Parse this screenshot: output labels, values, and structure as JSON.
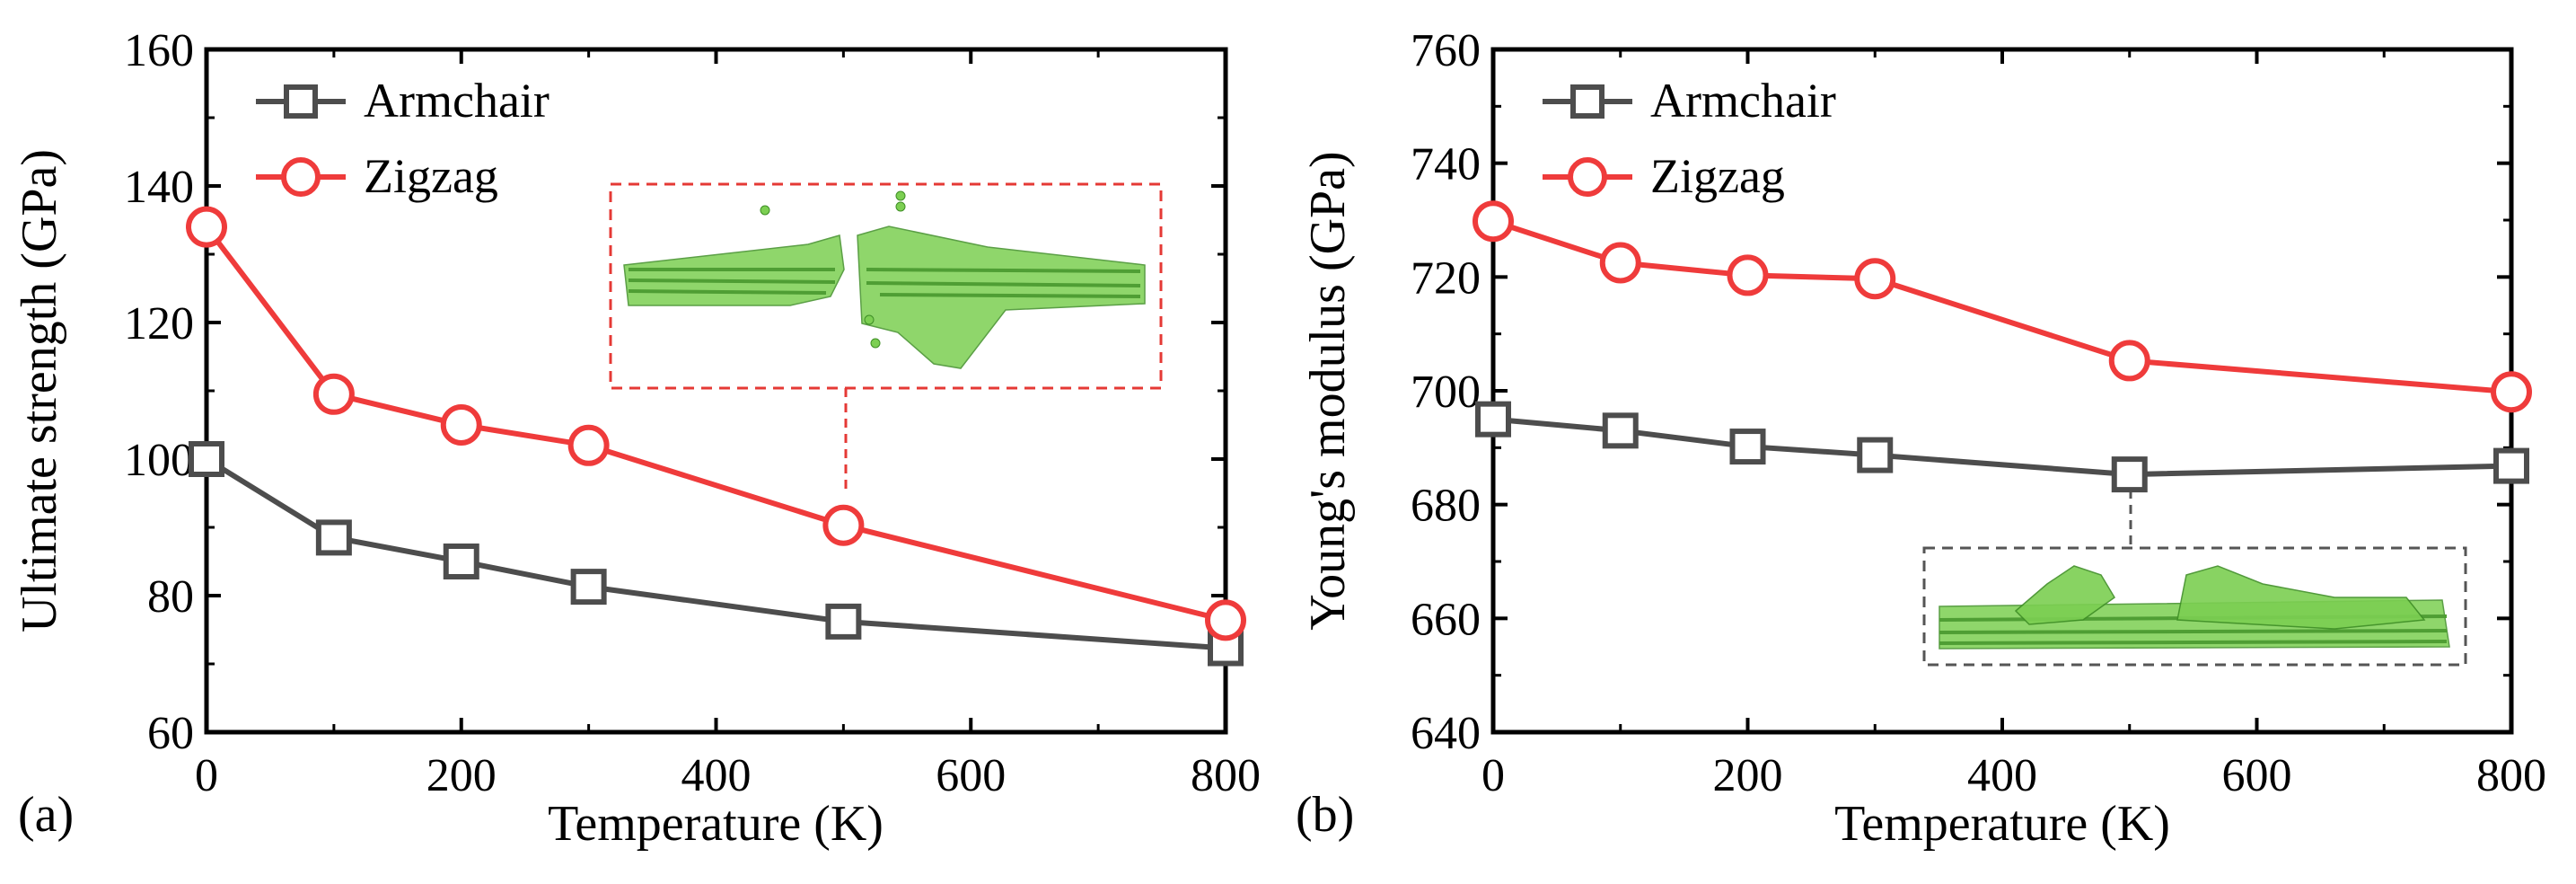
{
  "panels": [
    {
      "panel_label": "(a)",
      "legend": [
        {
          "label": "Armchair",
          "marker": "square",
          "color": "#4d4d4d"
        },
        {
          "label": "Zigzag",
          "marker": "circle",
          "color": "#ef3b3b"
        }
      ],
      "inset_marker_at": {
        "series": "Zigzag",
        "x": 500
      },
      "inset_image_description_name": "graphene-fracture-inset-a"
    },
    {
      "panel_label": "(b)",
      "legend": [
        {
          "label": "Armchair",
          "marker": "square",
          "color": "#4d4d4d"
        },
        {
          "label": "Zigzag",
          "marker": "circle",
          "color": "#ef3b3b"
        }
      ],
      "inset_marker_at": {
        "series": "Armchair",
        "x": 500
      },
      "inset_image_description_name": "graphene-fracture-inset-b"
    }
  ],
  "chart_data": [
    {
      "type": "line",
      "title": "",
      "xlabel": "Temperature (K)",
      "ylabel": "Ultimate strength (GPa)",
      "xlim": [
        0,
        800
      ],
      "ylim": [
        60,
        160
      ],
      "xticks": [
        0,
        200,
        400,
        600,
        800
      ],
      "yticks": [
        60,
        80,
        100,
        120,
        140,
        160
      ],
      "grid": false,
      "legend_position": "top-left",
      "x": [
        0,
        100,
        200,
        300,
        500,
        800
      ],
      "series": [
        {
          "name": "Armchair",
          "color": "#4d4d4d",
          "marker": "square",
          "values": [
            100,
            88.5,
            85,
            81.3,
            76.2,
            72.3
          ]
        },
        {
          "name": "Zigzag",
          "color": "#ef3b3b",
          "marker": "circle",
          "values": [
            134,
            109.5,
            105,
            102,
            90.3,
            76.4
          ]
        }
      ]
    },
    {
      "type": "line",
      "title": "",
      "xlabel": "Temperature (K)",
      "ylabel": "Young's modulus (GPa)",
      "xlim": [
        0,
        800
      ],
      "ylim": [
        640,
        760
      ],
      "xticks": [
        0,
        200,
        400,
        600,
        800
      ],
      "yticks": [
        640,
        660,
        680,
        700,
        720,
        740,
        760
      ],
      "grid": false,
      "legend_position": "top-left",
      "x": [
        0,
        100,
        200,
        300,
        500,
        800
      ],
      "series": [
        {
          "name": "Armchair",
          "color": "#4d4d4d",
          "marker": "square",
          "values": [
            695,
            693,
            690.2,
            688.7,
            685.3,
            686.8
          ]
        },
        {
          "name": "Zigzag",
          "color": "#ef3b3b",
          "marker": "circle",
          "values": [
            729.8,
            722.5,
            720.3,
            719.7,
            705.3,
            699.8
          ]
        }
      ]
    }
  ]
}
